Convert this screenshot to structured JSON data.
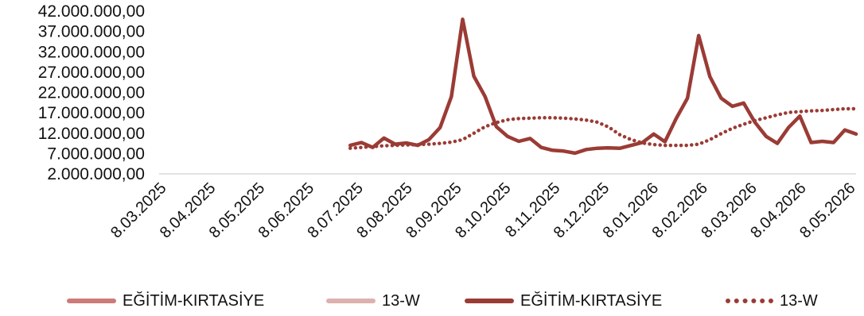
{
  "chart_data": {
    "type": "line",
    "y_ticks": [
      "42.000.000,00",
      "37.000.000,00",
      "32.000.000,00",
      "27.000.000,00",
      "22.000.000,00",
      "17.000.000,00",
      "12.000.000,00",
      "7.000.000,00",
      "2.000.000,00"
    ],
    "ylim": [
      2000000,
      42000000
    ],
    "x_ticks": [
      "8.03.2025",
      "8.04.2025",
      "8.05.2025",
      "8.06.2025",
      "8.07.2025",
      "8.08.2025",
      "8.09.2025",
      "8.10.2025",
      "8.11.2025",
      "8.12.2025",
      "8.01.2026",
      "8.02.2026",
      "8.03.2026",
      "8.04.2026",
      "8.05.2026"
    ],
    "x_week_range": [
      0,
      62
    ],
    "series": [
      {
        "name": "EĞİTİM-KIRTASİYE",
        "color": "#CD7B78",
        "style": "solid",
        "values": []
      },
      {
        "name": "13-W",
        "color": "#DDB1AE",
        "style": "solid",
        "values": []
      },
      {
        "name": "EĞİTİM-KIRTASİYE",
        "color": "#9B3B35",
        "style": "solid",
        "start_week": 17,
        "values": [
          9000000,
          9700000,
          8500000,
          10800000,
          9300000,
          9600000,
          9000000,
          10400000,
          13400000,
          21000000,
          40000000,
          26000000,
          21000000,
          13600000,
          11200000,
          10000000,
          10700000,
          8500000,
          7800000,
          7600000,
          7100000,
          8000000,
          8300000,
          8400000,
          8300000,
          9000000,
          9700000,
          11800000,
          9900000,
          15600000,
          20600000,
          36000000,
          25900000,
          20600000,
          18600000,
          19400000,
          14700000,
          11200000,
          9500000,
          13400000,
          16200000,
          9700000,
          10000000,
          9700000,
          12800000,
          11800000
        ]
      },
      {
        "name": "13-W",
        "color": "#9B3B35",
        "style": "dotted",
        "start_week": 17,
        "values": [
          8300000,
          8500000,
          8700000,
          8900000,
          9000000,
          9100000,
          9200000,
          9300000,
          9500000,
          9800000,
          10400000,
          12000000,
          13600000,
          14600000,
          15300000,
          15600000,
          15700000,
          15800000,
          15800000,
          15700000,
          15500000,
          15200000,
          14700000,
          13500000,
          11600000,
          10400000,
          9600000,
          9200000,
          9000000,
          9000000,
          9000000,
          9300000,
          10400000,
          11900000,
          13200000,
          14200000,
          15100000,
          15800000,
          16500000,
          17100000,
          17300000,
          17500000,
          17600000,
          17800000,
          18000000,
          18000000
        ]
      }
    ]
  }
}
